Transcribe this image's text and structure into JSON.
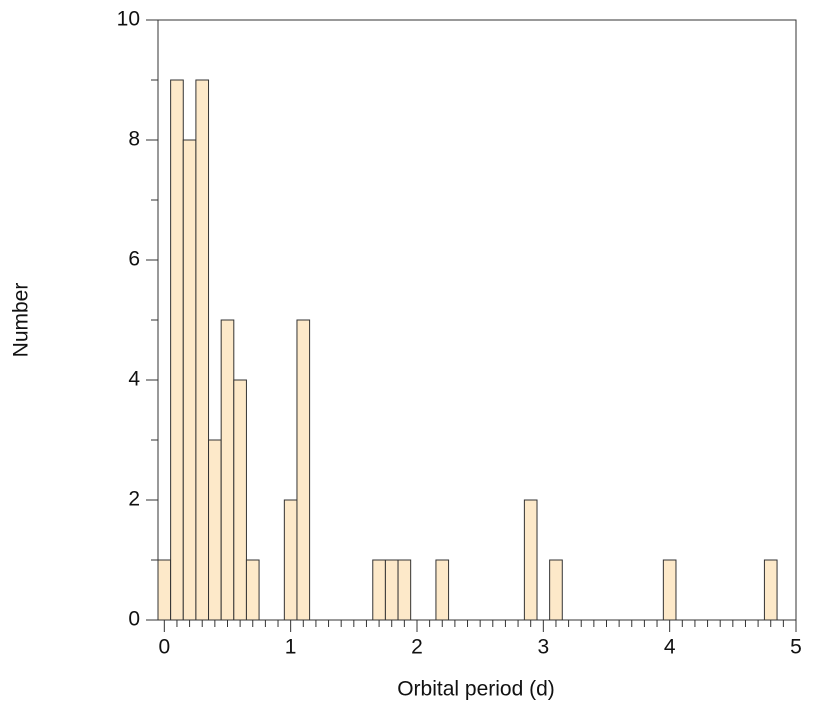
{
  "chart_data": {
    "type": "histogram",
    "xlabel": "Orbital period (d)",
    "ylabel": "Number",
    "bins": [
      -0.05,
      0.05,
      0.15,
      0.25,
      0.35,
      0.45,
      0.55,
      0.65,
      0.75,
      0.85,
      0.95,
      1.05,
      1.15,
      1.25,
      1.35,
      1.45,
      1.55,
      1.65,
      1.75,
      1.85,
      1.95,
      2.05,
      2.15,
      2.25,
      2.35,
      2.45,
      2.55,
      2.65,
      2.75,
      2.85,
      2.95,
      3.05,
      3.15,
      3.25,
      3.35,
      3.45,
      3.55,
      3.65,
      3.75,
      3.85,
      3.95,
      4.05,
      4.15,
      4.25,
      4.35,
      4.45,
      4.55,
      4.65,
      4.75,
      4.85,
      4.95
    ],
    "values": [
      1,
      9,
      8,
      9,
      3,
      5,
      4,
      1,
      0,
      0,
      2,
      5,
      0,
      0,
      0,
      0,
      0,
      1,
      1,
      1,
      0,
      0,
      1,
      0,
      0,
      0,
      0,
      0,
      0,
      2,
      0,
      1,
      0,
      0,
      0,
      0,
      0,
      0,
      0,
      0,
      1,
      0,
      0,
      0,
      0,
      0,
      0,
      0,
      1,
      0
    ],
    "color": "#fde9c9",
    "edgecolor": "#333333",
    "xlim": [
      -0.05,
      5
    ],
    "ylim": [
      0,
      10
    ],
    "xticks": [
      0,
      1,
      2,
      3,
      4,
      5
    ],
    "yticks": [
      0,
      2,
      4,
      6,
      8,
      10
    ],
    "xminorticks": [
      0.1,
      0.2,
      0.3,
      0.4,
      0.5,
      0.6,
      0.7,
      0.8,
      0.9,
      1.1,
      1.2,
      1.3,
      1.4,
      1.5,
      1.6,
      1.7,
      1.8,
      1.9,
      2.1,
      2.2,
      2.3,
      2.4,
      2.5,
      2.6,
      2.7,
      2.8,
      2.9,
      3.1,
      3.2,
      3.3,
      3.4,
      3.5,
      3.6,
      3.7,
      3.8,
      3.9,
      4.1,
      4.2,
      4.3,
      4.4,
      4.5,
      4.6,
      4.7,
      4.8,
      4.9
    ],
    "yminorticks": [
      1,
      3,
      5,
      7,
      9
    ]
  }
}
